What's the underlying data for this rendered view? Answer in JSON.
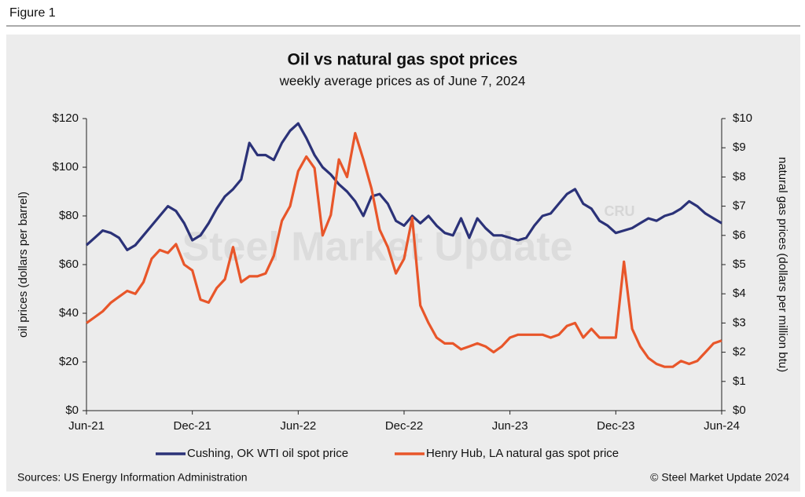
{
  "figure_label": "Figure 1",
  "chart_data": {
    "type": "line",
    "title": "Oil vs natural gas spot prices",
    "subtitle": "weekly average prices as of June 7, 2024",
    "ylabel": "oil prices (dollars per barrel)",
    "y2label": "natural gas prices (dollars per million btu)",
    "watermark": "Steel Market Update",
    "watermark_logo": "CRU",
    "categories": [
      "Jun-21",
      null,
      null,
      null,
      null,
      null,
      null,
      null,
      null,
      null,
      null,
      null,
      null,
      "Dec-21",
      null,
      null,
      null,
      null,
      null,
      null,
      null,
      null,
      null,
      null,
      null,
      null,
      "Jun-22",
      null,
      null,
      null,
      null,
      null,
      null,
      null,
      null,
      null,
      null,
      null,
      null,
      "Dec-22",
      null,
      null,
      null,
      null,
      null,
      null,
      null,
      null,
      null,
      null,
      null,
      null,
      "Jun-23",
      null,
      null,
      null,
      null,
      null,
      null,
      null,
      null,
      null,
      null,
      null,
      null,
      "Dec-23",
      null,
      null,
      null,
      null,
      null,
      null,
      null,
      null,
      null,
      null,
      null,
      null,
      "Jun-24"
    ],
    "series": [
      {
        "name": "Cushing, OK WTI oil spot price",
        "color": "#2b3278",
        "axis": "y",
        "values": [
          68,
          71,
          74,
          73,
          71,
          66,
          68,
          72,
          76,
          80,
          84,
          82,
          77,
          70,
          72,
          77,
          83,
          88,
          91,
          95,
          110,
          105,
          105,
          103,
          110,
          115,
          118,
          112,
          105,
          100,
          97,
          93,
          90,
          86,
          80,
          88,
          89,
          85,
          78,
          76,
          80,
          77,
          80,
          76,
          73,
          72,
          79,
          71,
          79,
          75,
          72,
          72,
          71,
          70,
          71,
          76,
          80,
          81,
          85,
          89,
          91,
          85,
          83,
          78,
          76,
          73,
          74,
          75,
          77,
          79,
          78,
          80,
          81,
          83,
          86,
          84,
          81,
          79,
          77
        ]
      },
      {
        "name": "Henry Hub, LA natural gas spot price",
        "color": "#e8562a",
        "axis": "y2",
        "values": [
          3.0,
          3.2,
          3.4,
          3.7,
          3.9,
          4.1,
          4.0,
          4.4,
          5.2,
          5.5,
          5.4,
          5.7,
          5.0,
          4.8,
          3.8,
          3.7,
          4.2,
          4.5,
          5.6,
          4.4,
          4.6,
          4.6,
          4.7,
          5.3,
          6.5,
          7.0,
          8.2,
          8.7,
          8.3,
          6.0,
          6.7,
          8.6,
          8.0,
          9.5,
          8.6,
          7.6,
          6.2,
          5.6,
          4.7,
          5.2,
          6.6,
          3.6,
          3.0,
          2.5,
          2.3,
          2.3,
          2.1,
          2.2,
          2.3,
          2.2,
          2.0,
          2.2,
          2.5,
          2.6,
          2.6,
          2.6,
          2.6,
          2.5,
          2.6,
          2.9,
          3.0,
          2.5,
          2.8,
          2.5,
          2.5,
          2.5,
          5.1,
          2.8,
          2.2,
          1.8,
          1.6,
          1.5,
          1.5,
          1.7,
          1.6,
          1.7,
          2.0,
          2.3,
          2.4
        ]
      }
    ],
    "ylim": [
      0,
      120
    ],
    "yticks": [
      {
        "value": 0,
        "label": "$0"
      },
      {
        "value": 20,
        "label": "$20"
      },
      {
        "value": 40,
        "label": "$40"
      },
      {
        "value": 60,
        "label": "$60"
      },
      {
        "value": 80,
        "label": "$80"
      },
      {
        "value": 100,
        "label": "$100"
      },
      {
        "value": 120,
        "label": "$120"
      }
    ],
    "y2lim": [
      0,
      10
    ],
    "y2ticks": [
      {
        "value": 0,
        "label": "$0"
      },
      {
        "value": 1,
        "label": "$1"
      },
      {
        "value": 2,
        "label": "$2"
      },
      {
        "value": 3,
        "label": "$3"
      },
      {
        "value": 4,
        "label": "$4"
      },
      {
        "value": 5,
        "label": "$5"
      },
      {
        "value": 6,
        "label": "$6"
      },
      {
        "value": 7,
        "label": "$7"
      },
      {
        "value": 8,
        "label": "$8"
      },
      {
        "value": 9,
        "label": "$9"
      },
      {
        "value": 10,
        "label": "$10"
      }
    ],
    "grid": false,
    "legend": "bottom",
    "source": "Sources: US Energy Information Administration",
    "copyright": "© Steel Market Update 2024"
  }
}
